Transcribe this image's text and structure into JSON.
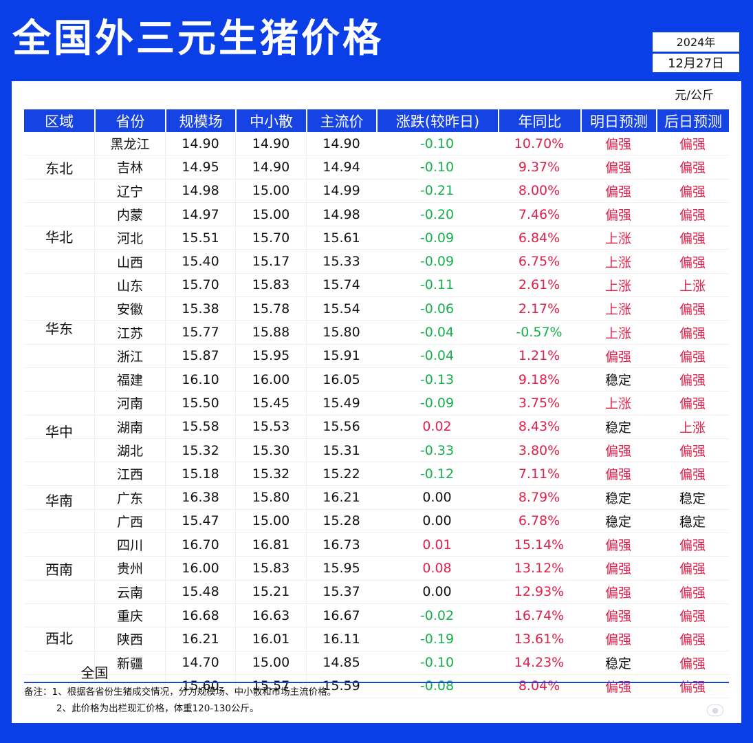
{
  "title": "全国外三元生猪价格",
  "date": {
    "year": "2024年",
    "day": "12月27日"
  },
  "unit": "元/公斤",
  "headers": [
    "区域",
    "省份",
    "规模场",
    "中小散",
    "主流价",
    "涨跌(较昨日)",
    "年同比",
    "明日预测",
    "后日预测"
  ],
  "regions": [
    {
      "name": "东北",
      "start": 0,
      "count": 3
    },
    {
      "name": "华北",
      "start": 3,
      "count": 3
    },
    {
      "name": "华东",
      "start": 6,
      "count": 5
    },
    {
      "name": "华中",
      "start": 11,
      "count": 4
    },
    {
      "name": "华南",
      "start": 15,
      "count": 2
    },
    {
      "name": "西南",
      "start": 17,
      "count": 4
    },
    {
      "name": "西北",
      "start": 21,
      "count": 2
    }
  ],
  "rows": [
    {
      "province": "黑龙江",
      "large": "14.90",
      "small": "14.90",
      "main": "14.90",
      "change": "-0.10",
      "yoy": "10.70%",
      "tomorrow": "偏强",
      "after": "偏强"
    },
    {
      "province": "吉林",
      "large": "14.95",
      "small": "14.90",
      "main": "14.94",
      "change": "-0.10",
      "yoy": "9.37%",
      "tomorrow": "偏强",
      "after": "偏强"
    },
    {
      "province": "辽宁",
      "large": "14.98",
      "small": "15.00",
      "main": "14.99",
      "change": "-0.21",
      "yoy": "8.00%",
      "tomorrow": "偏强",
      "after": "偏强"
    },
    {
      "province": "内蒙",
      "large": "14.97",
      "small": "15.00",
      "main": "14.98",
      "change": "-0.20",
      "yoy": "7.46%",
      "tomorrow": "偏强",
      "after": "偏强"
    },
    {
      "province": "河北",
      "large": "15.51",
      "small": "15.70",
      "main": "15.61",
      "change": "-0.09",
      "yoy": "6.84%",
      "tomorrow": "上涨",
      "after": "偏强"
    },
    {
      "province": "山西",
      "large": "15.40",
      "small": "15.17",
      "main": "15.33",
      "change": "-0.09",
      "yoy": "6.75%",
      "tomorrow": "上涨",
      "after": "偏强"
    },
    {
      "province": "山东",
      "large": "15.70",
      "small": "15.83",
      "main": "15.74",
      "change": "-0.11",
      "yoy": "2.61%",
      "tomorrow": "上涨",
      "after": "上涨"
    },
    {
      "province": "安徽",
      "large": "15.38",
      "small": "15.78",
      "main": "15.54",
      "change": "-0.06",
      "yoy": "2.17%",
      "tomorrow": "上涨",
      "after": "偏强"
    },
    {
      "province": "江苏",
      "large": "15.77",
      "small": "15.88",
      "main": "15.80",
      "change": "-0.04",
      "yoy": "-0.57%",
      "tomorrow": "上涨",
      "after": "偏强"
    },
    {
      "province": "浙江",
      "large": "15.87",
      "small": "15.95",
      "main": "15.91",
      "change": "-0.04",
      "yoy": "1.21%",
      "tomorrow": "偏强",
      "after": "偏强"
    },
    {
      "province": "福建",
      "large": "16.10",
      "small": "16.00",
      "main": "16.05",
      "change": "-0.13",
      "yoy": "9.18%",
      "tomorrow": "稳定",
      "after": "偏强"
    },
    {
      "province": "河南",
      "large": "15.50",
      "small": "15.45",
      "main": "15.49",
      "change": "-0.09",
      "yoy": "3.75%",
      "tomorrow": "上涨",
      "after": "偏强"
    },
    {
      "province": "湖南",
      "large": "15.58",
      "small": "15.53",
      "main": "15.56",
      "change": "0.02",
      "yoy": "8.43%",
      "tomorrow": "稳定",
      "after": "上涨"
    },
    {
      "province": "湖北",
      "large": "15.32",
      "small": "15.30",
      "main": "15.31",
      "change": "-0.33",
      "yoy": "3.80%",
      "tomorrow": "偏强",
      "after": "偏强"
    },
    {
      "province": "江西",
      "large": "15.18",
      "small": "15.32",
      "main": "15.22",
      "change": "-0.12",
      "yoy": "7.11%",
      "tomorrow": "偏强",
      "after": "偏强"
    },
    {
      "province": "广东",
      "large": "16.38",
      "small": "15.80",
      "main": "16.21",
      "change": "0.00",
      "yoy": "8.79%",
      "tomorrow": "稳定",
      "after": "稳定"
    },
    {
      "province": "广西",
      "large": "15.47",
      "small": "15.00",
      "main": "15.28",
      "change": "0.00",
      "yoy": "6.78%",
      "tomorrow": "稳定",
      "after": "稳定"
    },
    {
      "province": "四川",
      "large": "16.70",
      "small": "16.81",
      "main": "16.73",
      "change": "0.01",
      "yoy": "15.14%",
      "tomorrow": "偏强",
      "after": "偏强"
    },
    {
      "province": "贵州",
      "large": "16.00",
      "small": "15.83",
      "main": "15.95",
      "change": "0.08",
      "yoy": "13.12%",
      "tomorrow": "偏强",
      "after": "偏强"
    },
    {
      "province": "云南",
      "large": "15.48",
      "small": "15.21",
      "main": "15.37",
      "change": "0.00",
      "yoy": "12.93%",
      "tomorrow": "偏强",
      "after": "偏强"
    },
    {
      "province": "重庆",
      "large": "16.68",
      "small": "16.63",
      "main": "16.67",
      "change": "-0.02",
      "yoy": "16.74%",
      "tomorrow": "偏强",
      "after": "偏强"
    },
    {
      "province": "陕西",
      "large": "16.21",
      "small": "16.01",
      "main": "16.11",
      "change": "-0.19",
      "yoy": "13.61%",
      "tomorrow": "偏强",
      "after": "偏强"
    },
    {
      "province": "新疆",
      "large": "14.70",
      "small": "15.00",
      "main": "14.85",
      "change": "-0.10",
      "yoy": "14.23%",
      "tomorrow": "稳定",
      "after": "偏强"
    }
  ],
  "total": {
    "label": "全国",
    "large": "15.60",
    "small": "15.57",
    "main": "15.59",
    "change": "-0.08",
    "yoy": "8.04%",
    "tomorrow": "偏强",
    "after": "偏强"
  },
  "notes": [
    "备注：1、根据各省份生猪成交情况，分为规模场、中小散和市场主流价格。",
    "2、此价格为出栏现汇价格，体重120-130公斤。"
  ],
  "colors": {
    "background": "#0a3ee6",
    "header": "#1643e4",
    "up": "#e0204a",
    "down": "#14b04c"
  }
}
